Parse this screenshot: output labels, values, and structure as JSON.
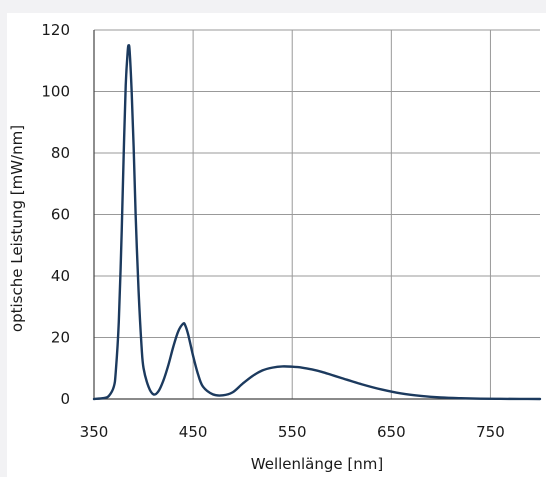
{
  "chart_data": {
    "type": "line",
    "title": "",
    "xlabel": "Wellenlänge [nm]",
    "ylabel": "optische Leistung [mW/nm]",
    "xlim": [
      350,
      800
    ],
    "ylim": [
      0,
      120
    ],
    "x_ticks": [
      350,
      450,
      550,
      650,
      750
    ],
    "y_ticks": [
      0,
      20,
      40,
      60,
      80,
      100,
      120
    ],
    "grid": true,
    "line_color": "#1c3a5e",
    "grid_color": "#999999",
    "series": [
      {
        "x": [
          350,
          360,
          365,
          370,
          372,
          375,
          378,
          380,
          382,
          384,
          385,
          386,
          388,
          390,
          392,
          395,
          398,
          400,
          405,
          410,
          415,
          420,
          425,
          430,
          435,
          440,
          442,
          445,
          450,
          455,
          460,
          470,
          480,
          490,
          500,
          510,
          520,
          530,
          540,
          550,
          560,
          570,
          580,
          590,
          600,
          620,
          640,
          660,
          680,
          700,
          720,
          740,
          760,
          780,
          800
        ],
        "y": [
          0,
          0.3,
          1,
          4,
          9,
          25,
          55,
          80,
          102,
          113,
          115,
          113,
          100,
          82,
          60,
          35,
          17,
          10,
          4,
          1.5,
          2.5,
          6,
          11,
          17,
          22,
          24.5,
          24,
          21,
          14,
          8,
          4,
          1.5,
          1.2,
          2.2,
          5,
          7.5,
          9.3,
          10.2,
          10.6,
          10.5,
          10.2,
          9.6,
          8.8,
          7.8,
          6.8,
          4.8,
          3.1,
          1.8,
          1.0,
          0.5,
          0.25,
          0.1,
          0.05,
          0.02,
          0
        ]
      }
    ]
  }
}
